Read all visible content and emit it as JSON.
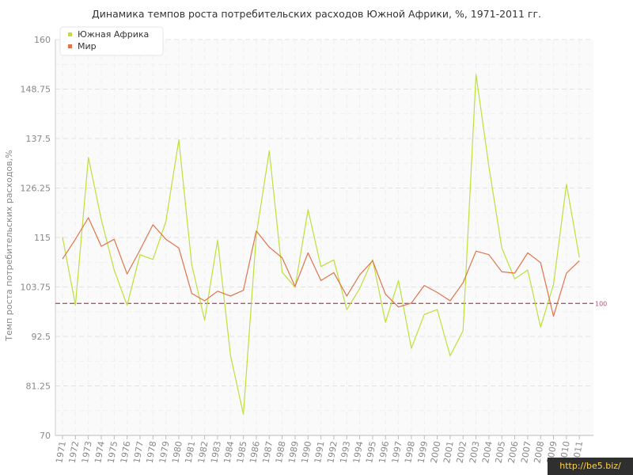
{
  "chart_data": {
    "type": "line",
    "title": "Динамика темпов роста потребительских расходов Южной Африки, %, 1971-2011 гг.",
    "xlabel": "",
    "ylabel": "Темп роста потребительских расходов,%",
    "ylim": [
      70,
      160
    ],
    "yticks": [
      "70",
      "81.25",
      "92.5",
      "103.75",
      "115",
      "126.25",
      "137.5",
      "148.75",
      "160"
    ],
    "x": [
      "1971",
      "1972",
      "1973",
      "1974",
      "1975",
      "1976",
      "1977",
      "1978",
      "1979",
      "1980",
      "1981",
      "1982",
      "1983",
      "1984",
      "1985",
      "1986",
      "1987",
      "1988",
      "1989",
      "1990",
      "1991",
      "1992",
      "1993",
      "1994",
      "1995",
      "1996",
      "1997",
      "1998",
      "1999",
      "2000",
      "2001",
      "2002",
      "2003",
      "2004",
      "2005",
      "2006",
      "2007",
      "2008",
      "2009",
      "2010",
      "2011"
    ],
    "series": [
      {
        "name": "Южная Африка",
        "color": "#bde03a",
        "values": [
          115.1,
          99.6,
          133.2,
          119.1,
          107.6,
          99.6,
          111.1,
          110.0,
          118.6,
          137.2,
          108.8,
          96.2,
          114.4,
          88.2,
          74.8,
          115.6,
          134.7,
          107.1,
          103.7,
          121.3,
          108.4,
          109.9,
          98.6,
          103.4,
          110.0,
          95.7,
          105.2,
          89.8,
          97.5,
          98.6,
          88.1,
          93.8,
          152.1,
          131.1,
          112.6,
          105.6,
          107.6,
          94.6,
          104.3,
          127.1,
          110.5
        ]
      },
      {
        "name": "Мир",
        "color": "#e0734a",
        "values": [
          110.1,
          114.6,
          119.5,
          113.0,
          114.6,
          106.7,
          112.2,
          117.9,
          114.6,
          112.6,
          102.3,
          100.6,
          102.8,
          101.7,
          103.0,
          116.5,
          112.8,
          110.4,
          103.9,
          111.5,
          105.2,
          107.0,
          101.7,
          106.5,
          109.7,
          102.1,
          99.2,
          100.1,
          104.1,
          102.5,
          100.6,
          104.7,
          111.9,
          111.1,
          107.2,
          106.9,
          111.5,
          109.3,
          97.1,
          106.9,
          109.7
        ]
      }
    ],
    "reference_line": {
      "value": 100,
      "label": "100",
      "color": "#b5556b"
    },
    "legend": {
      "position": "top-left"
    },
    "grid": true
  },
  "watermark": "http://be5.biz/"
}
